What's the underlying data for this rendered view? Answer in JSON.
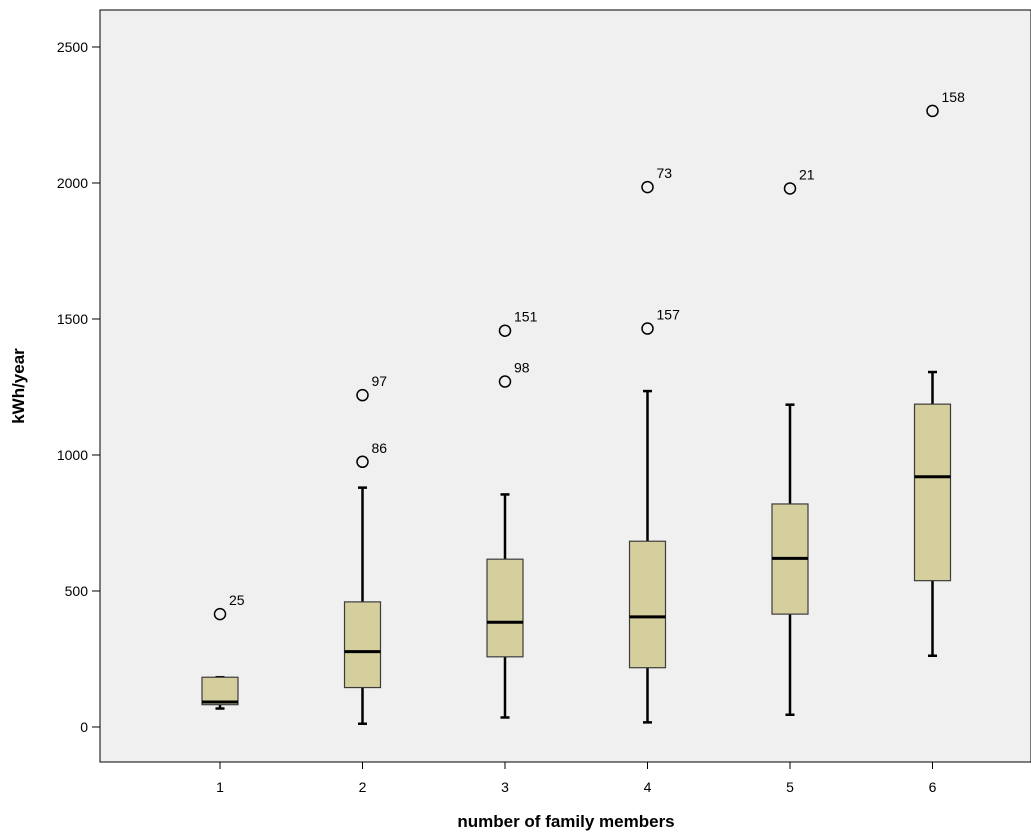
{
  "chart_data": {
    "type": "boxplot",
    "title": "",
    "xlabel": "number of family members",
    "ylabel": "kWh/year",
    "categories": [
      "1",
      "2",
      "3",
      "4",
      "5",
      "6"
    ],
    "ylim": [
      -130,
      2640
    ],
    "yticks": [
      0,
      500,
      1000,
      1500,
      2000,
      2500
    ],
    "grid": false,
    "legend": "none",
    "boxes": [
      {
        "category": "1",
        "whisker_low": 68,
        "q1": 82,
        "median": 92,
        "q3": 183,
        "whisker_high": 183
      },
      {
        "category": "2",
        "whisker_low": 12,
        "q1": 145,
        "median": 277,
        "q3": 460,
        "whisker_high": 880
      },
      {
        "category": "3",
        "whisker_low": 35,
        "q1": 258,
        "median": 385,
        "q3": 617,
        "whisker_high": 855
      },
      {
        "category": "4",
        "whisker_low": 17,
        "q1": 218,
        "median": 405,
        "q3": 683,
        "whisker_high": 1235
      },
      {
        "category": "5",
        "whisker_low": 45,
        "q1": 415,
        "median": 620,
        "q3": 820,
        "whisker_high": 1185
      },
      {
        "category": "6",
        "whisker_low": 262,
        "q1": 538,
        "median": 920,
        "q3": 1187,
        "whisker_high": 1305
      }
    ],
    "outliers": [
      {
        "category": "1",
        "value": 415,
        "label": "25"
      },
      {
        "category": "2",
        "value": 975,
        "label": "86"
      },
      {
        "category": "2",
        "value": 1220,
        "label": "97"
      },
      {
        "category": "3",
        "value": 1270,
        "label": "98"
      },
      {
        "category": "3",
        "value": 1457,
        "label": "151"
      },
      {
        "category": "4",
        "value": 1465,
        "label": "157"
      },
      {
        "category": "4",
        "value": 1985,
        "label": "73"
      },
      {
        "category": "5",
        "value": 1980,
        "label": "21"
      },
      {
        "category": "6",
        "value": 2265,
        "label": "158"
      }
    ],
    "colors": {
      "plot_background": "#f0f0f0",
      "box_fill": "#d4cf9c",
      "box_stroke": "#3c3c3c",
      "median": "#000000",
      "outlier_stroke": "#000000"
    }
  }
}
